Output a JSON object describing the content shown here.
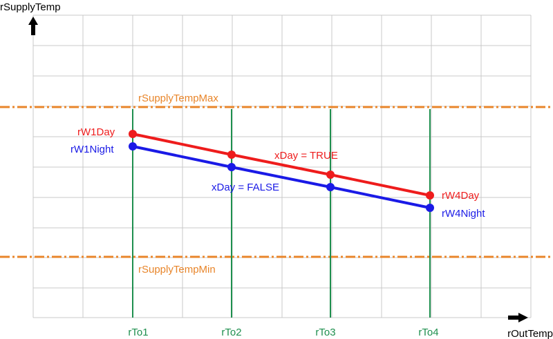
{
  "axes": {
    "y_label": "rSupplyTemp",
    "x_label": "rOutTemp"
  },
  "limits": {
    "max_label": "rSupplyTempMax",
    "min_label": "rSupplyTempMin",
    "color": "#e8852a"
  },
  "out_temp_points": [
    {
      "label": "rTo1"
    },
    {
      "label": "rTo2"
    },
    {
      "label": "rTo3"
    },
    {
      "label": "rTo4"
    }
  ],
  "curves": {
    "day": {
      "color": "#ee1c1c",
      "start_label": "rW1Day",
      "end_label": "rW4Day",
      "condition_label": "xDay = TRUE"
    },
    "night": {
      "color": "#1a1ae6",
      "start_label": "rW1Night",
      "end_label": "rW4Night",
      "condition_label": "xDay = FALSE"
    }
  },
  "colors": {
    "grid": "#c8c8c8",
    "verticals": "#1e8f4e",
    "axes": "#000000"
  }
}
